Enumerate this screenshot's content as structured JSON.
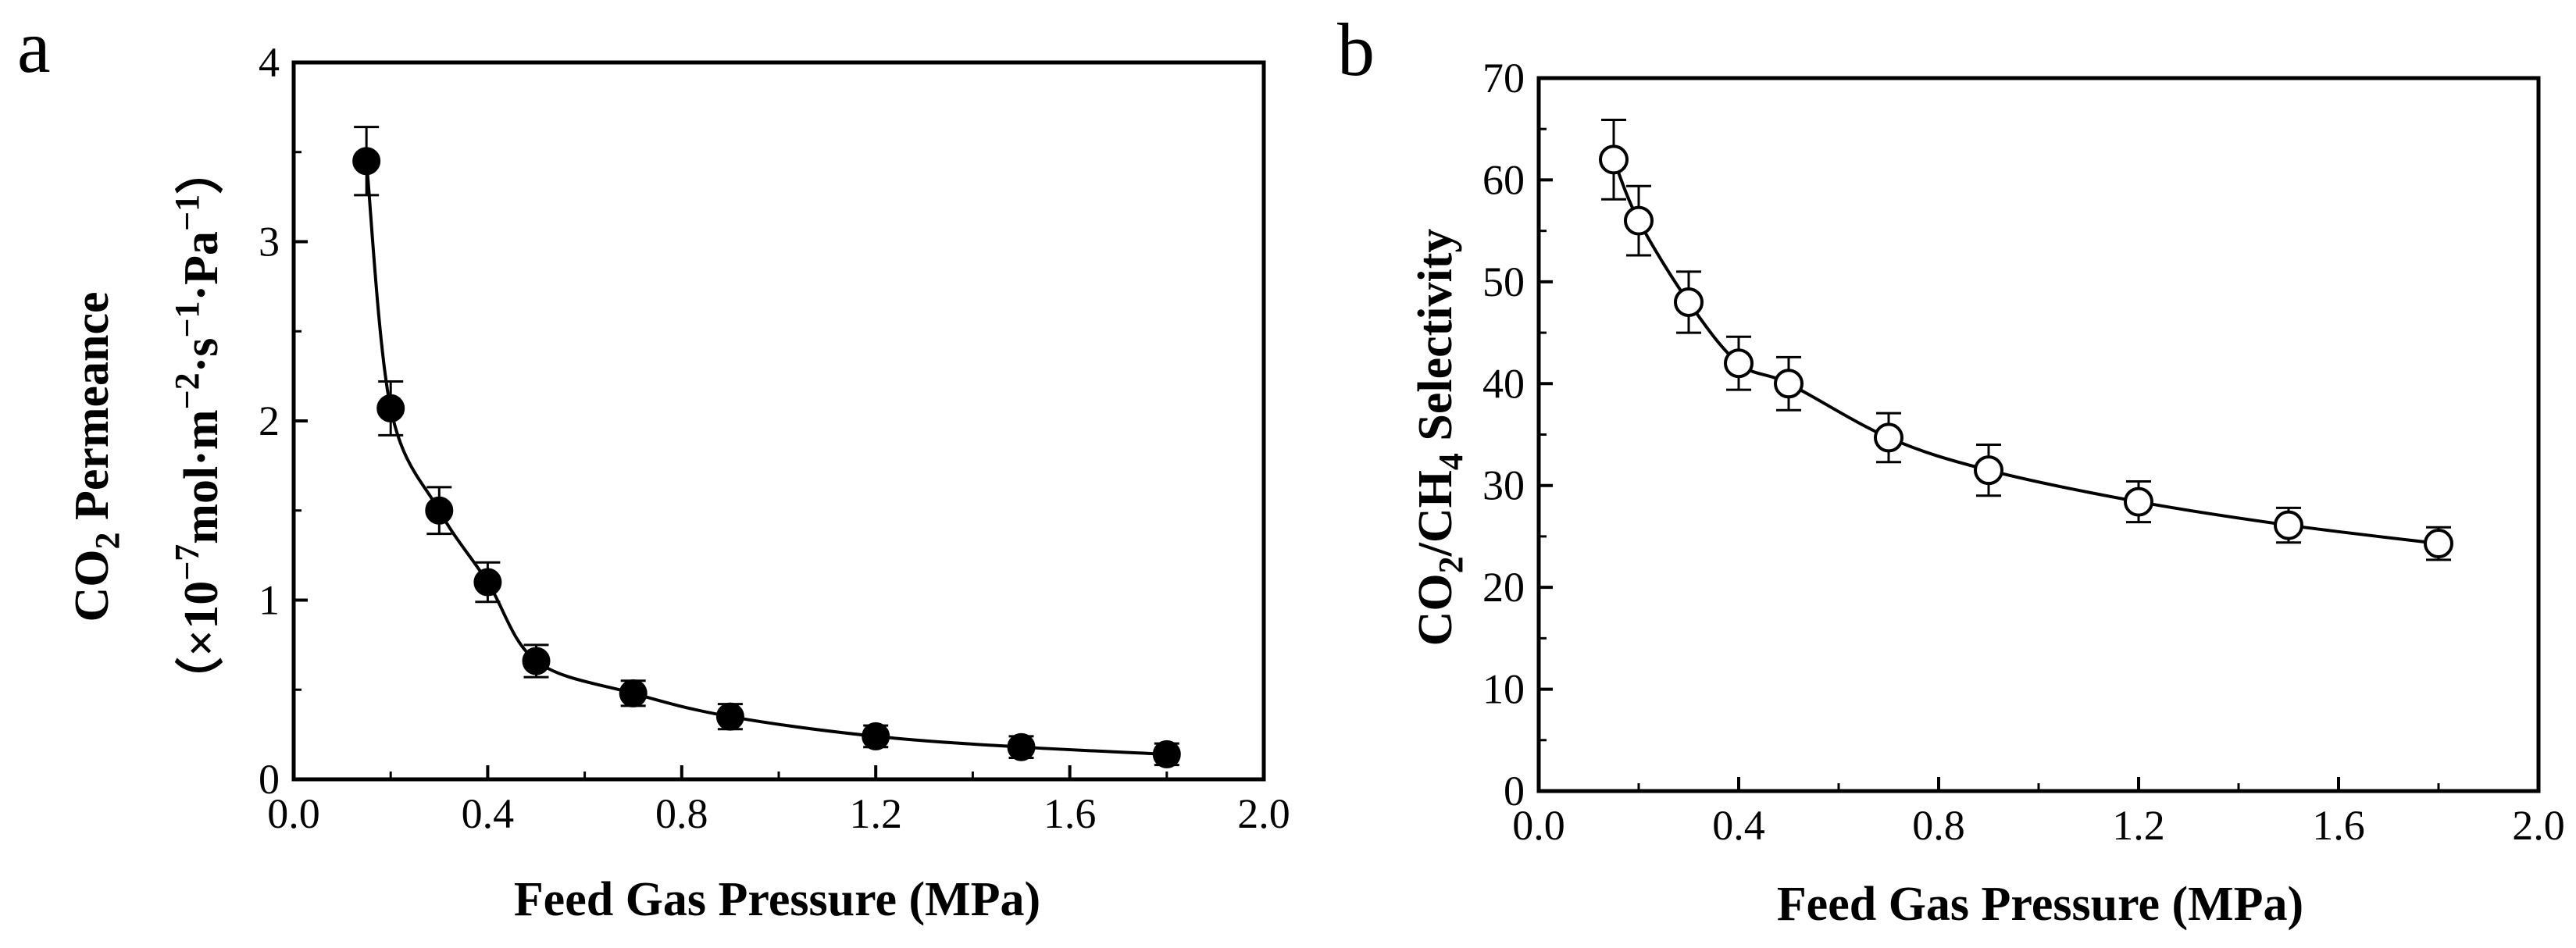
{
  "chart_data": [
    {
      "type": "line",
      "panel_label": "a",
      "xlabel": "Feed Gas Pressure (MPa)",
      "ylabel": {
        "main": "CO",
        "main_sub": "2",
        "main_rest": " Permeance",
        "units_open": "（×10",
        "units_exp1": "−7",
        "units_mid1": "mol·m",
        "units_exp2": "−2",
        "units_mid2": "·s",
        "units_exp3": "−1",
        "units_mid3": "·Pa",
        "units_exp4": "−1",
        "units_close": "）"
      },
      "xlim": [
        0.0,
        2.0
      ],
      "ylim": [
        0,
        4
      ],
      "xticks": [
        "0.0",
        "0.4",
        "0.8",
        "1.2",
        "1.6",
        "2.0"
      ],
      "yticks": [
        "0",
        "1",
        "2",
        "3",
        "4"
      ],
      "marker": "filled-circle",
      "series": [
        {
          "name": "CO2 Permeance",
          "x": [
            0.15,
            0.2,
            0.3,
            0.4,
            0.5,
            0.7,
            0.9,
            1.2,
            1.5,
            1.8
          ],
          "y": [
            3.45,
            2.07,
            1.5,
            1.1,
            0.66,
            0.48,
            0.35,
            0.24,
            0.18,
            0.14
          ],
          "err": [
            0.19,
            0.15,
            0.13,
            0.11,
            0.09,
            0.07,
            0.07,
            0.06,
            0.06,
            0.06
          ]
        }
      ]
    },
    {
      "type": "line",
      "panel_label": "b",
      "xlabel": "Feed Gas Pressure (MPa)",
      "ylabel": {
        "p1": "CO",
        "p1_sub": "2",
        "p2": "/CH",
        "p2_sub": "4",
        "p3": " Selectivity"
      },
      "xlim": [
        0.0,
        2.0
      ],
      "ylim": [
        0,
        70
      ],
      "xticks": [
        "0.0",
        "0.4",
        "0.8",
        "1.2",
        "1.6",
        "2.0"
      ],
      "yticks": [
        "0",
        "10",
        "20",
        "30",
        "40",
        "50",
        "60",
        "70"
      ],
      "marker": "open-circle",
      "series": [
        {
          "name": "CO2/CH4 Selectivity",
          "x": [
            0.15,
            0.2,
            0.3,
            0.4,
            0.5,
            0.7,
            0.9,
            1.2,
            1.5,
            1.8
          ],
          "y": [
            62,
            56,
            48,
            42,
            40,
            34.7,
            31.5,
            28.4,
            26.1,
            24.3
          ],
          "err": [
            3.9,
            3.4,
            3.0,
            2.6,
            2.6,
            2.4,
            2.5,
            2.0,
            1.7,
            1.6
          ]
        }
      ]
    }
  ]
}
